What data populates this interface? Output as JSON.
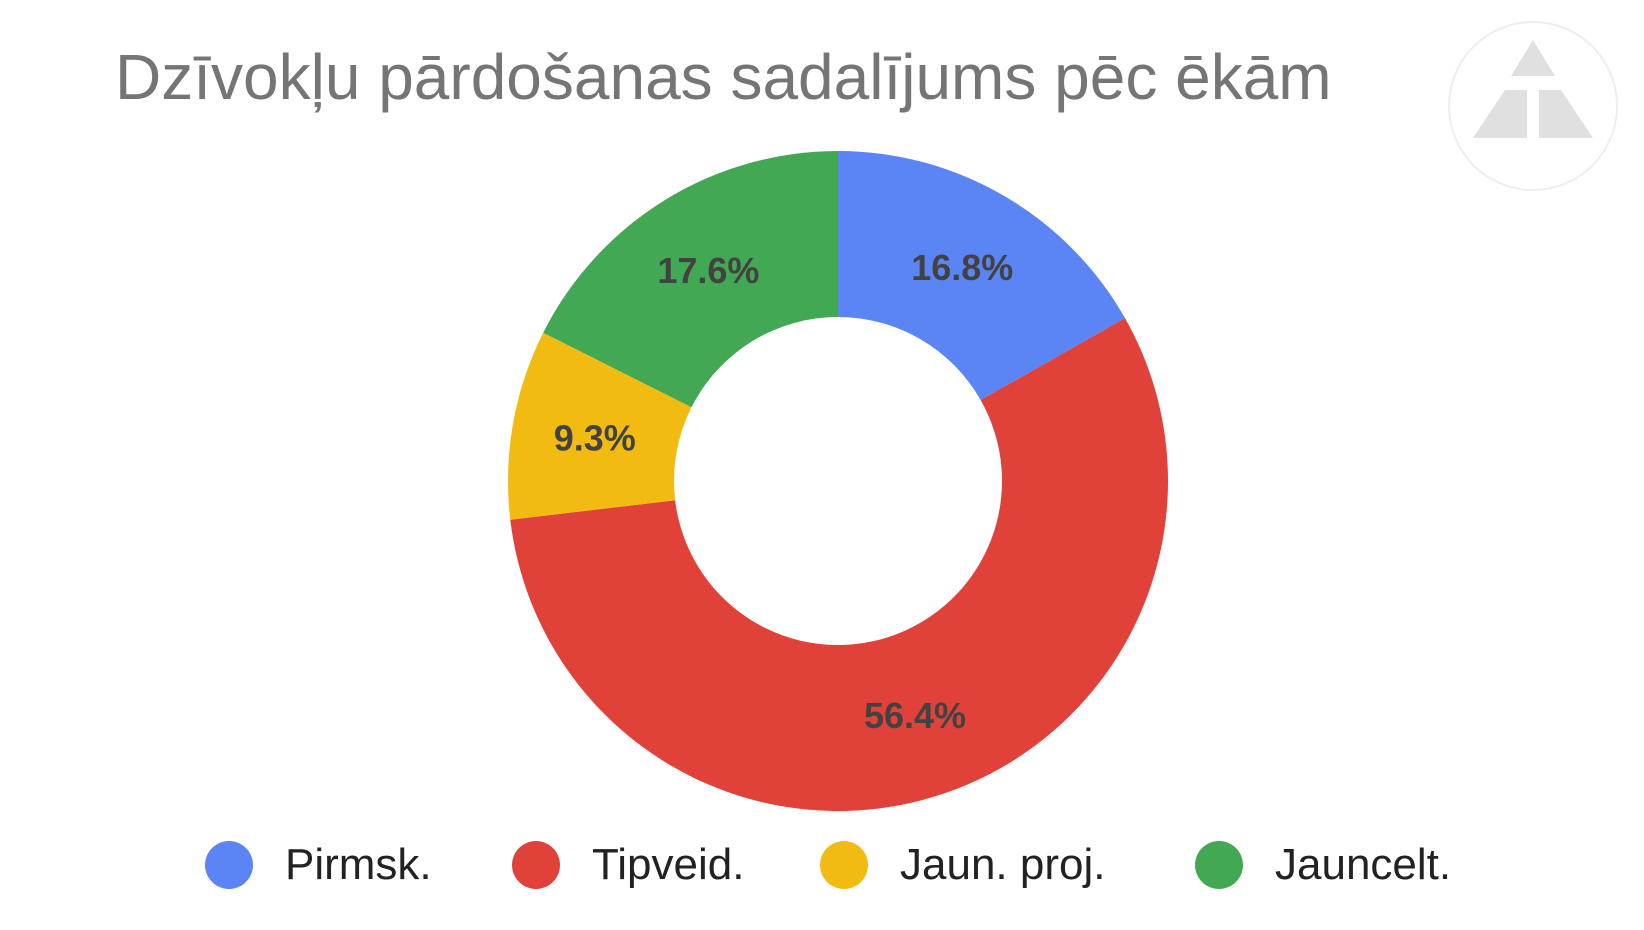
{
  "chart_data": {
    "type": "pie",
    "style": "donut",
    "title": "Dzīvokļu pārdošanas sadalījums pēc ēkām",
    "legend_position": "bottom",
    "slices": [
      {
        "label": "Pirmsk.",
        "value": 16.8,
        "display": "16.8%",
        "color": "#5b84f4"
      },
      {
        "label": "Tipveid.",
        "value": 56.4,
        "display": "56.4%",
        "color": "#e0423a"
      },
      {
        "label": "Jaun. proj.",
        "value": 9.3,
        "display": "9.3%",
        "color": "#f2bb11"
      },
      {
        "label": "Jauncelt.",
        "value": 17.6,
        "display": "17.6%",
        "color": "#43a853"
      }
    ]
  },
  "logo": {
    "icon": "triangle-logo-icon",
    "color": "#e0e0e0"
  }
}
